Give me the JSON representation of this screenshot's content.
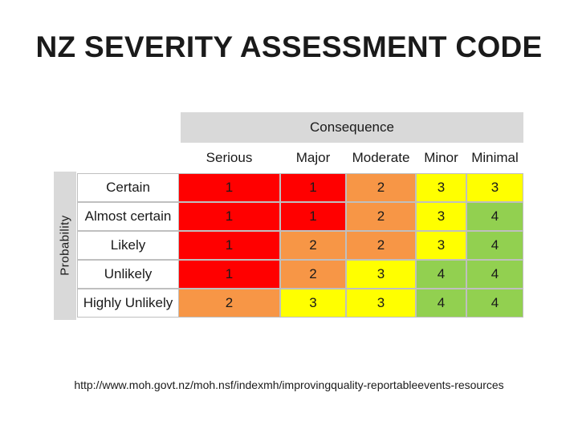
{
  "title": "NZ SEVERITY ASSESSMENT CODE",
  "matrix": {
    "consequence_label": "Consequence",
    "probability_label": "Probability",
    "columns": [
      "Serious",
      "Major",
      "Moderate",
      "Minor",
      "Minimal"
    ],
    "rows": [
      {
        "label": "Certain",
        "values": [
          "1",
          "1",
          "2",
          "3",
          "3"
        ]
      },
      {
        "label": "Almost certain",
        "values": [
          "1",
          "1",
          "2",
          "3",
          "4"
        ]
      },
      {
        "label": "Likely",
        "values": [
          "1",
          "2",
          "2",
          "3",
          "4"
        ]
      },
      {
        "label": "Unlikely",
        "values": [
          "1",
          "2",
          "3",
          "4",
          "4"
        ]
      },
      {
        "label": "Highly Unlikely",
        "values": [
          "2",
          "3",
          "3",
          "4",
          "4"
        ]
      }
    ],
    "severity_colors": {
      "1": "#ff0000",
      "2": "#f79646",
      "3": "#ffff00",
      "4": "#92d050"
    }
  },
  "source_url": "http://www.moh.govt.nz/moh.nsf/indexmh/improvingquality-reportableevents-resources"
}
